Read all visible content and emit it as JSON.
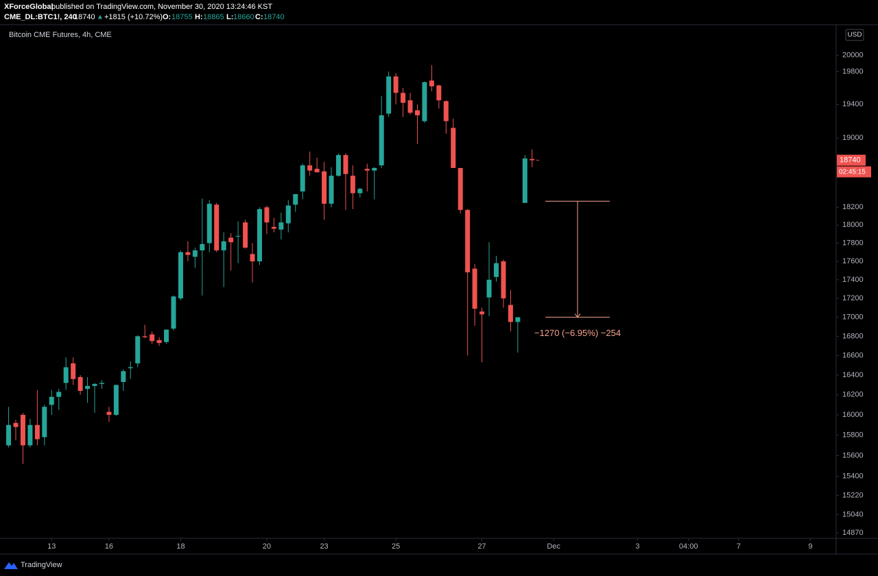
{
  "chart_data": {
    "type": "candlestick",
    "publisher": "XForceGlobal",
    "published": "published on TradingView.com, November 30, 2020 13:24:46 KST",
    "symbol": "CME_DL:BTC1!, 240",
    "change_label": "+1815 (+10.72%)",
    "title": "Bitcoin CME Futures, 4h, CME",
    "currency": "USD",
    "countdown": "02:45:15",
    "brand": "TradingView",
    "up_color": "#26a69a",
    "down_color": "#ef5350",
    "log_scale": true,
    "grid": false,
    "open": [
      15700,
      15920,
      16000,
      15700,
      15900,
      15780,
      16100,
      16180,
      16320,
      16520,
      16380,
      16260,
      16290,
      16310,
      16030,
      16000,
      16330,
      16470,
      16520,
      16800,
      16820,
      16760,
      16740,
      16880,
      17200,
      17700,
      17650,
      17720,
      17800,
      18230,
      17720,
      17860,
      17880,
      18030,
      17680,
      17600,
      18200,
      17980,
      17950,
      18020,
      18230,
      18380,
      18680,
      18640,
      18610,
      18240,
      18560,
      18800,
      18560,
      18360,
      18640,
      18620,
      18680,
      19290,
      19740,
      19540,
      19450,
      19330,
      19200,
      19690,
      19630,
      19440,
      19120,
      18650,
      18170,
      17520,
      17060,
      17210,
      17430,
      17600,
      17130,
      16950,
      18250,
      18755
    ],
    "high": [
      16080,
      15950,
      16020,
      15960,
      16250,
      16100,
      16250,
      16260,
      16580,
      16580,
      16400,
      16380,
      16320,
      16350,
      16080,
      16300,
      16460,
      16540,
      16810,
      16920,
      16850,
      16790,
      16870,
      17230,
      17720,
      17820,
      17750,
      18300,
      18280,
      18250,
      17920,
      17910,
      18040,
      18060,
      17800,
      18200,
      18220,
      18080,
      18140,
      18280,
      18350,
      18700,
      18840,
      18770,
      18720,
      18660,
      18820,
      18820,
      18680,
      18420,
      18700,
      18660,
      19500,
      19800,
      19780,
      19600,
      19540,
      19400,
      19680,
      19880,
      19640,
      19450,
      19230,
      18650,
      18180,
      17570,
      17100,
      17810,
      17660,
      17620,
      17290,
      16990,
      18800,
      18865
    ],
    "low": [
      15680,
      15750,
      15520,
      15680,
      15700,
      15700,
      16000,
      16050,
      16250,
      16300,
      16200,
      16120,
      16020,
      16260,
      15930,
      15990,
      16240,
      16360,
      16480,
      16780,
      16720,
      16700,
      16720,
      16860,
      17180,
      17600,
      17530,
      17230,
      17700,
      17700,
      17320,
      17500,
      17580,
      17740,
      17370,
      17560,
      17900,
      17920,
      17840,
      17920,
      18150,
      18290,
      18560,
      18600,
      18060,
      18200,
      18550,
      18170,
      18180,
      18310,
      18380,
      18290,
      18650,
      19250,
      19400,
      19250,
      19280,
      18930,
      19180,
      19560,
      19350,
      19050,
      18650,
      18130,
      16600,
      16910,
      16530,
      17010,
      17380,
      17100,
      16850,
      16630,
      18250,
      18660
    ],
    "close": [
      15900,
      15880,
      15700,
      15900,
      15760,
      16080,
      16180,
      16230,
      16480,
      16360,
      16240,
      16290,
      16310,
      16320,
      16000,
      16300,
      16440,
      16480,
      16800,
      16790,
      16750,
      16730,
      16870,
      17220,
      17700,
      17670,
      17720,
      17790,
      18240,
      17720,
      17820,
      17810,
      17880,
      17750,
      17600,
      18180,
      18030,
      17960,
      18030,
      18220,
      18350,
      18680,
      18620,
      18600,
      18240,
      18560,
      18800,
      18580,
      18360,
      18410,
      18620,
      18650,
      19270,
      19740,
      19540,
      19420,
      19300,
      19270,
      19670,
      19620,
      19450,
      19200,
      18650,
      18170,
      17480,
      17090,
      17030,
      17400,
      17580,
      17200,
      16950,
      17000,
      18760,
      18740
    ],
    "xlim": [
      -1.2,
      115.3
    ],
    "xticks": [
      {
        "value": 6,
        "label": "13"
      },
      {
        "value": 14,
        "label": "16"
      },
      {
        "value": 24,
        "label": "18"
      },
      {
        "value": 36,
        "label": "20"
      },
      {
        "value": 44,
        "label": "23"
      },
      {
        "value": 54,
        "label": "25"
      },
      {
        "value": 66,
        "label": "27"
      },
      {
        "value": 76,
        "label": "Dec"
      },
      {
        "value": 87.7,
        "label": "3"
      },
      {
        "value": 94.8,
        "label": "04:00"
      },
      {
        "value": 101.8,
        "label": "7"
      },
      {
        "value": 111.8,
        "label": "9"
      }
    ],
    "ylim": [
      14820,
      20350
    ],
    "yticks": [
      14870,
      15040,
      15220,
      15400,
      15600,
      15800,
      16000,
      16200,
      16400,
      16600,
      16800,
      17000,
      17200,
      17400,
      17600,
      17800,
      18000,
      18200,
      19000,
      19400,
      19800,
      20000
    ],
    "measure": {
      "from": 18270,
      "to": 17000,
      "label": "−1270 (−6.95%) −254",
      "color": "#f7a48f"
    }
  }
}
